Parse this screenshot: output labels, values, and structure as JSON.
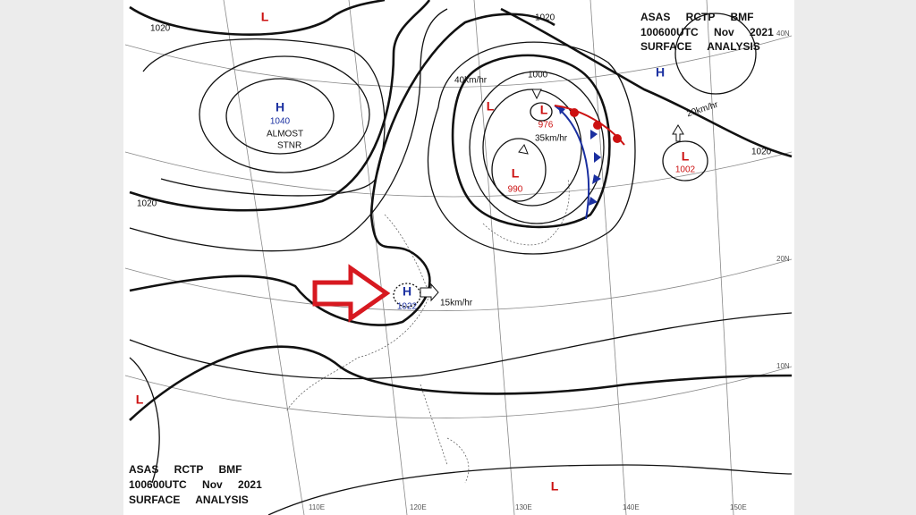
{
  "header_top": {
    "line1": "ASAS RCTP BMF",
    "line2": "100600UTC Nov 2021",
    "line3": "SURFACE ANALYSIS"
  },
  "header_bottom": {
    "line1": "ASAS RCTP BMF",
    "line2": "100600UTC Nov 2021",
    "line3": "SURFACE ANALYSIS"
  },
  "centers": [
    {
      "type": "H",
      "value": "1040"
    },
    {
      "type": "H",
      "value": "1022"
    },
    {
      "type": "L",
      "value": "990"
    },
    {
      "type": "L",
      "value": "976"
    },
    {
      "type": "L",
      "value": "1002"
    },
    {
      "type": "H"
    },
    {
      "type": "L"
    },
    {
      "type": "L"
    },
    {
      "type": "L"
    },
    {
      "type": "L"
    }
  ],
  "notes": [
    "ALMOST",
    "STNR",
    "40km/hr",
    "1000",
    "35km/hr",
    "20km/hr",
    "15km/hr"
  ],
  "isobar_labels": [
    "1020",
    "1020",
    "1020",
    "1020"
  ],
  "grid_labels": [
    "40N",
    "20N",
    "10N",
    "110E",
    "120E",
    "130E",
    "140E",
    "150E"
  ]
}
